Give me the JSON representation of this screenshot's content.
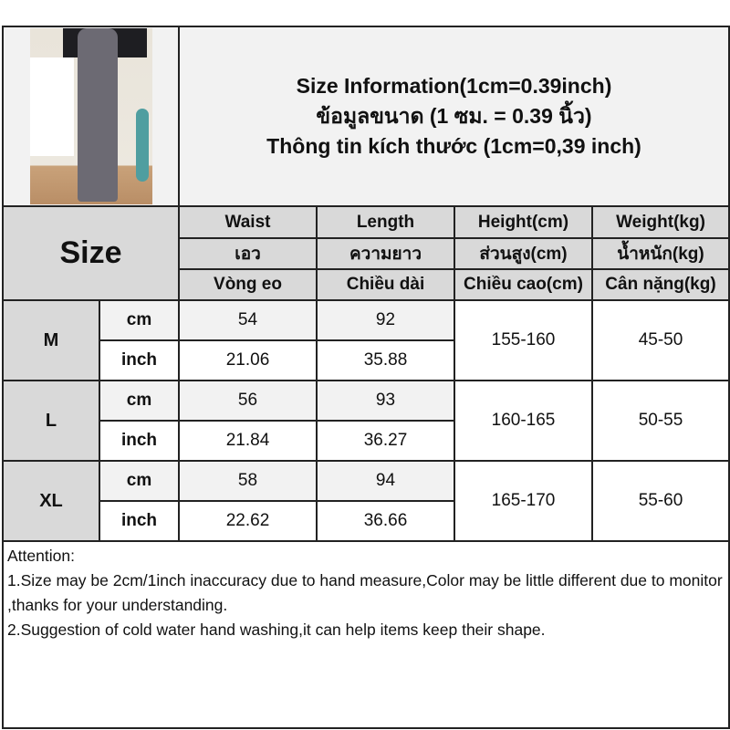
{
  "header": {
    "title_en": "Size Information(1cm=0.39inch)",
    "title_th": "ข้อมูลขนาด (1 ซม. = 0.39 นิ้ว)",
    "title_vi": "Thông tin kích thước (1cm=0,39 inch)"
  },
  "size_label": "Size",
  "columns": [
    {
      "en": "Waist",
      "th": "เอว",
      "vi": "Vòng eo"
    },
    {
      "en": "Length",
      "th": "ความยาว",
      "vi": "Chiều dài"
    },
    {
      "en": "Height(cm)",
      "th": "ส่วนสูง(cm)",
      "vi": "Chiều cao(cm)"
    },
    {
      "en": "Weight(kg)",
      "th": "น้ำหนัก(kg)",
      "vi": "Cân nặng(kg)"
    }
  ],
  "units": {
    "cm": "cm",
    "inch": "inch"
  },
  "sizes": [
    {
      "size": "M",
      "waist_cm": "54",
      "length_cm": "92",
      "waist_in": "21.06",
      "length_in": "35.88",
      "height": "155-160",
      "weight": "45-50"
    },
    {
      "size": "L",
      "waist_cm": "56",
      "length_cm": "93",
      "waist_in": "21.84",
      "length_in": "36.27",
      "height": "160-165",
      "weight": "50-55"
    },
    {
      "size": "XL",
      "waist_cm": "58",
      "length_cm": "94",
      "waist_in": "22.62",
      "length_in": "36.66",
      "height": "165-170",
      "weight": "55-60"
    }
  ],
  "attention": {
    "heading": "Attention:",
    "note1": "1.Size may be 2cm/1inch inaccuracy due to hand measure,Color may be little different due to monitor ,thanks for your understanding.",
    "note2": "2.Suggestion of cold water hand washing,it can help items keep their shape."
  },
  "colors": {
    "header_bg": "#d9d9d9",
    "light_bg": "#f2f2f2",
    "border": "#222222"
  }
}
